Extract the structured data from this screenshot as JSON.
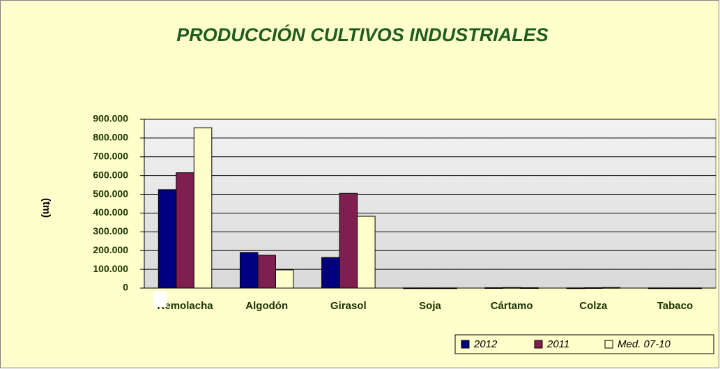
{
  "chart_data": {
    "type": "bar",
    "title": "PRODUCCIÓN CULTIVOS INDUSTRIALES",
    "y_label": "(tm)",
    "categories": [
      "Remolacha",
      "Algodón",
      "Girasol",
      "Soja",
      "Cártamo",
      "Colza",
      "Tabaco"
    ],
    "series": [
      {
        "name": "2012",
        "color": "#000080",
        "values": [
          525000,
          190000,
          163000,
          1000,
          2000,
          1000,
          1000
        ]
      },
      {
        "name": "2011",
        "color": "#7f1f50",
        "values": [
          615000,
          175000,
          505000,
          1000,
          3000,
          2000,
          1000
        ]
      },
      {
        "name": "Med. 07-10",
        "color": "#ffffcc",
        "values": [
          855000,
          97000,
          383000,
          1000,
          2000,
          3000,
          1000
        ]
      }
    ],
    "ylim": [
      0,
      900000
    ],
    "yticks": [
      0,
      {
        "value": 100000,
        "label": "100.000"
      },
      {
        "value": 200000,
        "label": "200.000"
      },
      {
        "value": 300000,
        "label": "300.000"
      },
      {
        "value": 400000,
        "label": "400.000"
      },
      {
        "value": 500000,
        "label": "500.000"
      },
      {
        "value": 600000,
        "label": "600.000"
      },
      {
        "value": 700000,
        "label": "700.000"
      },
      {
        "value": 800000,
        "label": "800.000"
      },
      {
        "value": 900000,
        "label": "900.000"
      }
    ],
    "grid": true,
    "legend": "bottom-right"
  }
}
